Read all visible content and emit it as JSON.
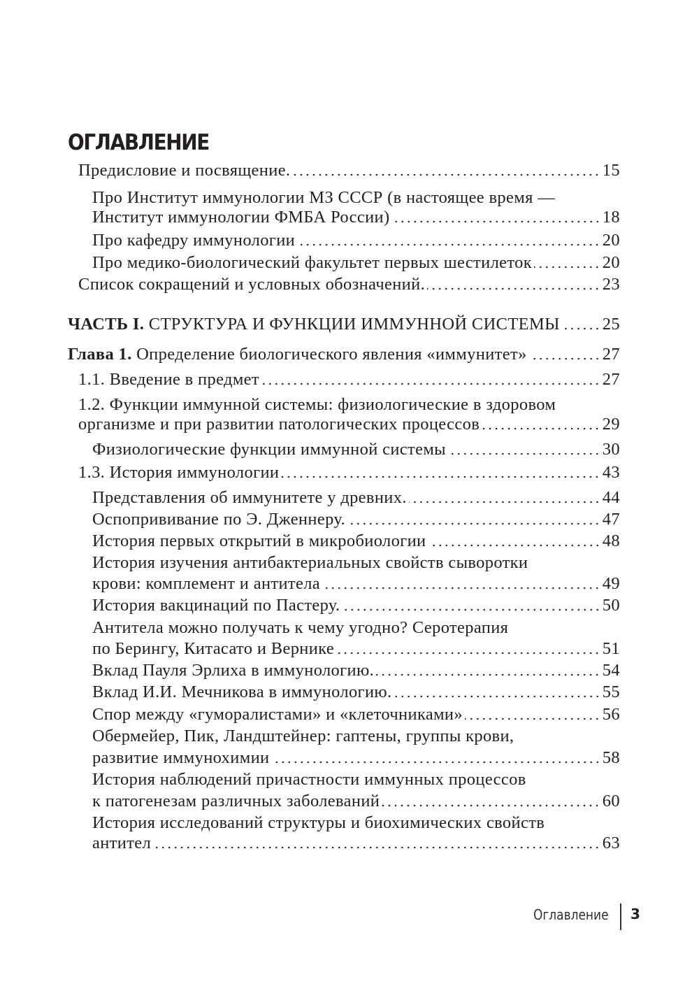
{
  "heading": "ОГЛАВЛЕНИЕ",
  "entries": [
    {
      "level": 1,
      "lines": [
        "Предисловие и посвящение."
      ],
      "page": "15"
    },
    {
      "level": 2,
      "lines": [
        "Про Институт иммунологии МЗ СССР (в настоящее время —",
        "Институт иммунологии ФМБА России)"
      ],
      "page": "18"
    },
    {
      "level": 2,
      "lines": [
        "Про кафедру иммунологии"
      ],
      "page": "20"
    },
    {
      "level": 2,
      "lines": [
        "Про медико-биологический факультет первых шестилеток"
      ],
      "page": "20"
    },
    {
      "level": 1,
      "lines": [
        "Список сокращений и условных обозначений."
      ],
      "page": "23"
    },
    {
      "level": 0,
      "prefix": "ЧАСТЬ I.",
      "lines": [
        " СТРУКТУРА И ФУНКЦИИ ИММУННОЙ СИСТЕМЫ"
      ],
      "page": "25"
    },
    {
      "level": 0,
      "prefix": "Глава 1.",
      "lines": [
        " Определение биологического явления «иммунитет»"
      ],
      "page": "27"
    },
    {
      "level": 1,
      "lines": [
        "1.1. Введение в предмет"
      ],
      "page": "27"
    },
    {
      "level": 1,
      "lines": [
        "1.2. Функции иммунной системы: физиологические в здоровом",
        "организме и при развитии патологических процессов"
      ],
      "page": "29"
    },
    {
      "level": 2,
      "lines": [
        "Физиологические функции иммунной системы"
      ],
      "page": "30"
    },
    {
      "level": 1,
      "lines": [
        "1.3. История иммунологии"
      ],
      "page": "43"
    },
    {
      "level": 2,
      "lines": [
        "Представления об иммунитете у древних."
      ],
      "page": "44"
    },
    {
      "level": 2,
      "lines": [
        "Оспопрививание по Э. Дженнеру."
      ],
      "page": "47"
    },
    {
      "level": 2,
      "lines": [
        "История первых открытий в микробиологии"
      ],
      "page": "48"
    },
    {
      "level": 2,
      "lines": [
        "История изучения антибактериальных свойств сыворотки",
        "крови: комплемент и антитела"
      ],
      "page": "49"
    },
    {
      "level": 2,
      "lines": [
        "История вакцинаций по Пастеру."
      ],
      "page": "50"
    },
    {
      "level": 2,
      "lines": [
        "Антитела можно получать к чему угодно? Серотерапия",
        "по Берингу, Китасато и Вернике"
      ],
      "page": "51"
    },
    {
      "level": 2,
      "lines": [
        "Вклад Пауля Эрлиха в иммунологию."
      ],
      "page": "54"
    },
    {
      "level": 2,
      "lines": [
        "Вклад И.И. Мечникова в иммунологию."
      ],
      "page": "55"
    },
    {
      "level": 2,
      "lines": [
        "Спор между «гуморалистами» и «клеточниками»"
      ],
      "page": "56"
    },
    {
      "level": 2,
      "lines": [
        "Обермейер, Пик, Ландштейнер: гаптены, группы крови,",
        "развитие иммунохимии"
      ],
      "page": "58"
    },
    {
      "level": 2,
      "lines": [
        "История наблюдений причастности иммунных процессов",
        "к патогенезам различных заболеваний"
      ],
      "page": "60"
    },
    {
      "level": 2,
      "lines": [
        "История исследований структуры и биохимических свойств",
        "антител"
      ],
      "page": "63"
    }
  ],
  "footer": {
    "section": "Оглавление",
    "page_number": "3"
  }
}
